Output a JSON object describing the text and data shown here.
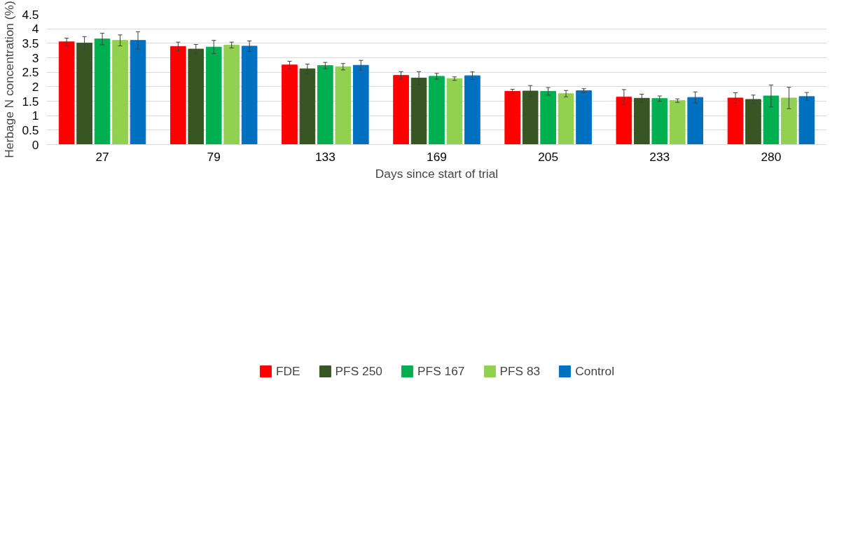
{
  "chart_data": {
    "type": "bar",
    "xlabel": "Days since start of trial",
    "ylabel": "Herbage N concentration (%)",
    "categories": [
      "27",
      "79",
      "133",
      "169",
      "205",
      "233",
      "280"
    ],
    "series": [
      {
        "name": "FDE",
        "color": "#ff0000",
        "values": [
          3.55,
          3.39,
          2.75,
          2.39,
          1.84,
          1.64,
          1.61
        ],
        "errors": [
          0.13,
          0.15,
          0.13,
          0.13,
          0.07,
          0.26,
          0.18
        ]
      },
      {
        "name": "PFS 250",
        "color": "#375623",
        "values": [
          3.51,
          3.3,
          2.62,
          2.3,
          1.85,
          1.6,
          1.56
        ],
        "errors": [
          0.22,
          0.16,
          0.16,
          0.22,
          0.19,
          0.14,
          0.15
        ]
      },
      {
        "name": "PFS 167",
        "color": "#00b050",
        "values": [
          3.65,
          3.37,
          2.73,
          2.36,
          1.84,
          1.59,
          1.68
        ],
        "errors": [
          0.2,
          0.23,
          0.11,
          0.1,
          0.13,
          0.09,
          0.38
        ]
      },
      {
        "name": "PFS 83",
        "color": "#92d050",
        "values": [
          3.6,
          3.44,
          2.69,
          2.28,
          1.76,
          1.52,
          1.61
        ],
        "errors": [
          0.19,
          0.1,
          0.11,
          0.06,
          0.11,
          0.06,
          0.37
        ]
      },
      {
        "name": "Control",
        "color": "#0070c0",
        "values": [
          3.6,
          3.4,
          2.74,
          2.38,
          1.86,
          1.63,
          1.66
        ],
        "errors": [
          0.3,
          0.18,
          0.17,
          0.13,
          0.07,
          0.19,
          0.14
        ]
      }
    ],
    "ylim": [
      0,
      4.5
    ],
    "yticks": [
      0,
      {
        "value": 0.5,
        "label": "0.5"
      },
      1,
      {
        "value": 1.5,
        "label": "1.5"
      },
      2,
      {
        "value": 2.5,
        "label": "2.5"
      },
      3,
      {
        "value": 3.5,
        "label": "3.5"
      },
      4,
      {
        "value": 4.5,
        "label": "4.5"
      }
    ],
    "grid": "y",
    "legend": "bottom"
  }
}
